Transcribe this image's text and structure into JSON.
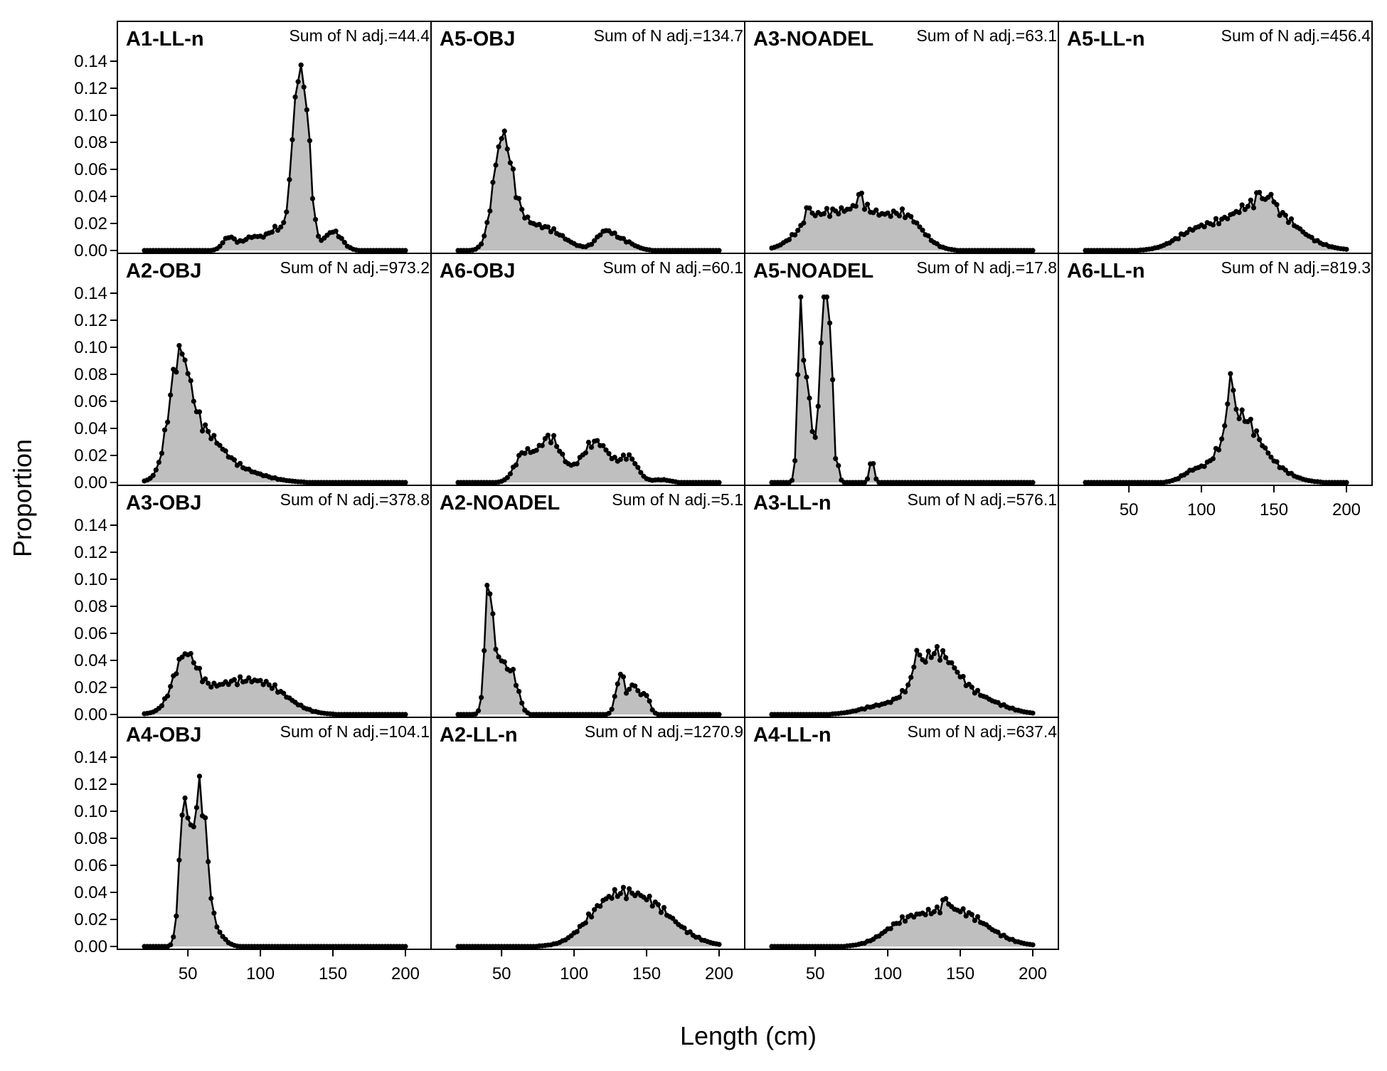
{
  "chart_data": {
    "type": "area",
    "xlabel": "Length (cm)",
    "ylabel": "Proportion",
    "xlim": [
      20,
      200
    ],
    "ylim": [
      0,
      0.14
    ],
    "x_ticks": [
      50,
      100,
      150,
      200
    ],
    "y_ticks": [
      0.0,
      0.02,
      0.04,
      0.06,
      0.08,
      0.1,
      0.12,
      0.14
    ],
    "y_tick_labels": [
      "0.00",
      "0.02",
      "0.04",
      "0.06",
      "0.08",
      "0.10",
      "0.12",
      "0.14"
    ],
    "x_range": [
      20,
      200
    ],
    "x_step": 2,
    "colors": {
      "fill": "#bfbfbf",
      "line": "#000000",
      "marker": "#000000"
    },
    "panels": [
      {
        "title": "A1-LL-n",
        "sum_text": "Sum of N adj.=44.4",
        "row": 0,
        "col": 0,
        "peaks": [
          [
            78,
            0.009,
            4
          ],
          [
            95,
            0.01,
            8
          ],
          [
            112,
            0.015,
            6
          ],
          [
            125,
            0.094,
            4
          ],
          [
            131,
            0.088,
            4
          ],
          [
            150,
            0.014,
            6
          ]
        ]
      },
      {
        "title": "A5-OBJ",
        "sum_text": "Sum of N adj.=134.7",
        "row": 0,
        "col": 1,
        "peaks": [
          [
            50,
            0.07,
            6
          ],
          [
            58,
            0.02,
            8
          ],
          [
            78,
            0.017,
            14
          ],
          [
            121,
            0.012,
            6
          ],
          [
            133,
            0.007,
            8
          ]
        ]
      },
      {
        "title": "A3-NOADEL",
        "sum_text": "Sum of N adj.=63.1",
        "row": 0,
        "col": 2,
        "peaks": [
          [
            52,
            0.024,
            14
          ],
          [
            82,
            0.028,
            14
          ],
          [
            112,
            0.024,
            12
          ],
          [
            45,
            0.01,
            2
          ],
          [
            81,
            0.01,
            2
          ]
        ]
      },
      {
        "title": "A5-LL-n",
        "sum_text": "Sum of N adj.=456.4",
        "row": 0,
        "col": 3,
        "peaks": [
          [
            96,
            0.012,
            14
          ],
          [
            140,
            0.035,
            22
          ],
          [
            140,
            0.008,
            2
          ],
          [
            148,
            0.009,
            2
          ]
        ]
      },
      {
        "title": "A2-OBJ",
        "sum_text": "Sum of N adj.=973.2",
        "row": 1,
        "col": 0,
        "peaks": [
          [
            44,
            0.074,
            7
          ],
          [
            58,
            0.035,
            14
          ],
          [
            85,
            0.008,
            18
          ]
        ]
      },
      {
        "title": "A6-OBJ",
        "sum_text": "Sum of N adj.=60.1",
        "row": 1,
        "col": 1,
        "peaks": [
          [
            65,
            0.02,
            6
          ],
          [
            83,
            0.033,
            8
          ],
          [
            115,
            0.03,
            10
          ],
          [
            138,
            0.017,
            6
          ],
          [
            160,
            0.002,
            6
          ]
        ]
      },
      {
        "title": "A5-NOADEL",
        "sum_text": "Sum of N adj.=17.8",
        "row": 1,
        "col": 2,
        "peaks": [
          [
            40,
            0.13,
            2
          ],
          [
            45,
            0.06,
            2
          ],
          [
            53,
            0.04,
            4
          ],
          [
            56,
            0.11,
            2
          ],
          [
            60,
            0.11,
            2
          ],
          [
            66,
            0.012,
            1
          ],
          [
            89,
            0.018,
            1.5
          ]
        ]
      },
      {
        "title": "A6-LL-n",
        "sum_text": "Sum of N adj.=819.3",
        "row": 1,
        "col": 3,
        "peaks": [
          [
            125,
            0.045,
            12
          ],
          [
            120,
            0.035,
            2
          ],
          [
            145,
            0.012,
            14
          ],
          [
            95,
            0.008,
            8
          ]
        ]
      },
      {
        "title": "A3-OBJ",
        "sum_text": "Sum of N adj.=378.8",
        "row": 2,
        "col": 0,
        "peaks": [
          [
            48,
            0.037,
            8
          ],
          [
            75,
            0.02,
            20
          ],
          [
            105,
            0.016,
            16
          ]
        ]
      },
      {
        "title": "A2-NOADEL",
        "sum_text": "Sum of N adj.=5.1",
        "row": 2,
        "col": 1,
        "peaks": [
          [
            41,
            0.085,
            2.5
          ],
          [
            48,
            0.04,
            5
          ],
          [
            58,
            0.025,
            4
          ],
          [
            132,
            0.03,
            3
          ],
          [
            141,
            0.022,
            3
          ],
          [
            149,
            0.015,
            3
          ]
        ]
      },
      {
        "title": "A3-LL-n",
        "sum_text": "Sum of N adj.=576.1",
        "row": 2,
        "col": 2,
        "peaks": [
          [
            132,
            0.042,
            14
          ],
          [
            160,
            0.012,
            18
          ],
          [
            95,
            0.006,
            14
          ],
          [
            120,
            0.015,
            2
          ]
        ]
      },
      {
        "title": "A4-OBJ",
        "sum_text": "Sum of N adj.=104.1",
        "row": 3,
        "col": 0,
        "peaks": [
          [
            47,
            0.09,
            3
          ],
          [
            55,
            0.065,
            5
          ],
          [
            60,
            0.065,
            4
          ],
          [
            68,
            0.012,
            6
          ]
        ]
      },
      {
        "title": "A2-LL-n",
        "sum_text": "Sum of N adj.=1270.9",
        "row": 3,
        "col": 1,
        "peaks": [
          [
            145,
            0.035,
            22
          ],
          [
            120,
            0.015,
            14
          ]
        ]
      },
      {
        "title": "A4-LL-n",
        "sum_text": "Sum of N adj.=637.4",
        "row": 3,
        "col": 2,
        "peaks": [
          [
            145,
            0.027,
            22
          ],
          [
            110,
            0.012,
            14
          ],
          [
            140,
            0.008,
            2
          ]
        ]
      }
    ]
  }
}
